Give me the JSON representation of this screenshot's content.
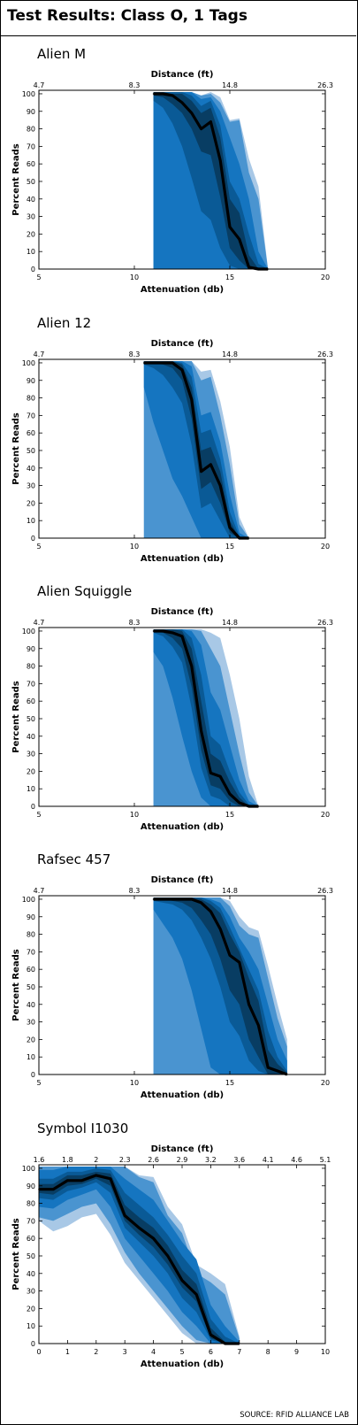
{
  "page": {
    "title": "Test Results: Class O, 1 Tags",
    "source": "SOURCE: RFID ALLIANCE LAB"
  },
  "colors": {
    "band_light": "#a8c8e6",
    "band_1": "#4a94d0",
    "band_2": "#1575c0",
    "band_3": "#0a5a96",
    "band_4": "#083d63",
    "median": "#000000",
    "frame": "#000000"
  },
  "chart_data": [
    {
      "type": "area",
      "title": "Alien M",
      "xlabel": "Attenuation (db)",
      "ylabel": "Percent Reads",
      "x2label": "Distance (ft)",
      "xlim": [
        5,
        20
      ],
      "ylim": [
        0,
        102
      ],
      "xticks": [
        5,
        10,
        15,
        20
      ],
      "yticks": [
        0,
        10,
        20,
        30,
        40,
        50,
        60,
        70,
        80,
        90,
        100
      ],
      "x2ticks": [
        "4.7",
        "8.3",
        "14.8",
        "26.3"
      ],
      "x": [
        11,
        11.5,
        12,
        12.5,
        13,
        13.5,
        14,
        14.5,
        15,
        15.5,
        16,
        16.5,
        17
      ],
      "series": [
        {
          "values": [
            100,
            100,
            99,
            95,
            89,
            80,
            84,
            62,
            24,
            17,
            1,
            0,
            0
          ]
        }
      ],
      "bands": [
        {
          "level": "min-max",
          "lower": [
            22,
            10,
            0,
            0,
            0,
            0,
            0,
            0,
            0,
            0,
            0,
            0,
            0
          ],
          "upper": [
            101,
            101,
            101,
            101,
            101,
            99,
            101,
            98,
            85,
            86,
            63,
            47,
            0
          ]
        },
        {
          "level": "outer",
          "lower": [
            0,
            0,
            0,
            0,
            0,
            0,
            0,
            0,
            0,
            0,
            0,
            0,
            0
          ],
          "upper": [
            101,
            101,
            101,
            101,
            101,
            99,
            100,
            95,
            84,
            85,
            55,
            40,
            0
          ]
        },
        {
          "level": "mid",
          "lower": [
            0,
            0,
            0,
            0,
            0,
            0,
            0,
            0,
            0,
            0,
            0,
            0,
            0
          ],
          "upper": [
            101,
            101,
            101,
            101,
            101,
            97,
            98,
            90,
            75,
            60,
            40,
            10,
            0
          ]
        },
        {
          "level": "inner",
          "lower": [
            96,
            92,
            83,
            70,
            52,
            33,
            28,
            12,
            2,
            0,
            0,
            0,
            0
          ],
          "upper": [
            101,
            101,
            101,
            101,
            99,
            93,
            96,
            82,
            50,
            40,
            20,
            3,
            0
          ]
        },
        {
          "level": "core",
          "lower": [
            99,
            98,
            94,
            89,
            80,
            67,
            65,
            41,
            12,
            5,
            0,
            0,
            0
          ],
          "upper": [
            101,
            101,
            100,
            100,
            96,
            89,
            92,
            75,
            40,
            32,
            8,
            0,
            0
          ]
        }
      ]
    },
    {
      "type": "area",
      "title": "Alien 12",
      "xlabel": "Attenuation (db)",
      "ylabel": "Percent Reads",
      "x2label": "Distance (ft)",
      "xlim": [
        5,
        20
      ],
      "ylim": [
        0,
        102
      ],
      "xticks": [
        5,
        10,
        15,
        20
      ],
      "yticks": [
        0,
        10,
        20,
        30,
        40,
        50,
        60,
        70,
        80,
        90,
        100
      ],
      "x2ticks": [
        "4.7",
        "8.3",
        "14.8",
        "26.3"
      ],
      "x": [
        10.5,
        11,
        11.5,
        12,
        12.5,
        13,
        13.5,
        14,
        14.5,
        15,
        15.5,
        16
      ],
      "series": [
        {
          "values": [
            100,
            100,
            100,
            100,
            96,
            79,
            38,
            42,
            30,
            6,
            0,
            0
          ]
        }
      ],
      "bands": [
        {
          "level": "min-max",
          "lower": [
            0,
            0,
            0,
            0,
            0,
            0,
            0,
            0,
            0,
            0,
            0,
            0
          ],
          "upper": [
            101,
            101,
            101,
            101,
            101,
            101,
            95,
            96,
            78,
            52,
            12,
            0
          ]
        },
        {
          "level": "outer",
          "lower": [
            0,
            0,
            0,
            0,
            0,
            0,
            0,
            0,
            0,
            0,
            0,
            0
          ],
          "upper": [
            101,
            101,
            101,
            101,
            101,
            101,
            90,
            92,
            70,
            42,
            8,
            0
          ]
        },
        {
          "level": "mid",
          "lower": [
            86,
            66,
            50,
            34,
            24,
            12,
            0,
            0,
            0,
            0,
            0,
            0
          ],
          "upper": [
            101,
            101,
            101,
            101,
            101,
            98,
            70,
            72,
            55,
            25,
            3,
            0
          ]
        },
        {
          "level": "inner",
          "lower": [
            99,
            97,
            93,
            86,
            77,
            53,
            17,
            20,
            10,
            0,
            0,
            0
          ],
          "upper": [
            101,
            101,
            101,
            101,
            100,
            92,
            60,
            62,
            45,
            15,
            1,
            0
          ]
        },
        {
          "level": "core",
          "lower": [
            100,
            100,
            99,
            97,
            90,
            68,
            28,
            32,
            20,
            3,
            0,
            0
          ],
          "upper": [
            101,
            101,
            101,
            101,
            99,
            86,
            50,
            52,
            38,
            10,
            0,
            0
          ]
        }
      ]
    },
    {
      "type": "area",
      "title": "Alien Squiggle",
      "xlabel": "Attenuation (db)",
      "ylabel": "Percent Reads",
      "x2label": "Distance (ft)",
      "xlim": [
        5,
        20
      ],
      "ylim": [
        0,
        102
      ],
      "xticks": [
        5,
        10,
        15,
        20
      ],
      "yticks": [
        0,
        10,
        20,
        30,
        40,
        50,
        60,
        70,
        80,
        90,
        100
      ],
      "x2ticks": [
        "4.7",
        "8.3",
        "14.8",
        "26.3"
      ],
      "x": [
        11,
        11.5,
        12,
        12.5,
        13,
        13.5,
        14,
        14.5,
        15,
        15.5,
        16,
        16.5
      ],
      "series": [
        {
          "values": [
            100,
            100,
            99,
            97,
            80,
            43,
            19,
            17,
            7,
            2,
            0,
            0
          ]
        }
      ],
      "bands": [
        {
          "level": "min-max",
          "lower": [
            0,
            0,
            0,
            0,
            0,
            0,
            0,
            0,
            0,
            0,
            0,
            0
          ],
          "upper": [
            101,
            101,
            101,
            101,
            101,
            101,
            99,
            96,
            75,
            50,
            17,
            0
          ]
        },
        {
          "level": "outer",
          "lower": [
            0,
            0,
            0,
            0,
            0,
            0,
            0,
            0,
            0,
            0,
            0,
            0
          ],
          "upper": [
            101,
            101,
            101,
            101,
            101,
            100,
            90,
            80,
            55,
            30,
            8,
            0
          ]
        },
        {
          "level": "mid",
          "lower": [
            88,
            80,
            62,
            40,
            20,
            5,
            0,
            0,
            0,
            0,
            0,
            0
          ],
          "upper": [
            101,
            101,
            101,
            101,
            100,
            92,
            65,
            55,
            35,
            15,
            3,
            0
          ]
        },
        {
          "level": "inner",
          "lower": [
            99,
            97,
            91,
            82,
            56,
            22,
            6,
            4,
            0,
            0,
            0,
            0
          ],
          "upper": [
            101,
            101,
            101,
            101,
            96,
            75,
            40,
            35,
            20,
            8,
            1,
            0
          ]
        },
        {
          "level": "core",
          "lower": [
            100,
            99,
            96,
            90,
            68,
            32,
            12,
            10,
            3,
            0,
            0,
            0
          ],
          "upper": [
            101,
            101,
            101,
            100,
            90,
            60,
            30,
            26,
            14,
            5,
            0,
            0
          ]
        }
      ]
    },
    {
      "type": "area",
      "title": "Rafsec 457",
      "xlabel": "Attenuation (db)",
      "ylabel": "Percent Reads",
      "x2label": "Distance (ft)",
      "xlim": [
        5,
        20
      ],
      "ylim": [
        0,
        102
      ],
      "xticks": [
        5,
        10,
        15,
        20
      ],
      "yticks": [
        0,
        10,
        20,
        30,
        40,
        50,
        60,
        70,
        80,
        90,
        100
      ],
      "x2ticks": [
        "4.7",
        "8.3",
        "14.8",
        "26.3"
      ],
      "x": [
        11,
        11.5,
        12,
        12.5,
        13,
        13.5,
        14,
        14.5,
        15,
        15.5,
        16,
        16.5,
        17,
        17.5,
        18
      ],
      "series": [
        {
          "values": [
            100,
            100,
            100,
            100,
            100,
            98,
            93,
            83,
            68,
            64,
            40,
            28,
            4,
            2,
            0
          ]
        }
      ],
      "bands": [
        {
          "level": "min-max",
          "lower": [
            0,
            0,
            0,
            0,
            0,
            0,
            0,
            0,
            0,
            0,
            0,
            0,
            0,
            0,
            0
          ],
          "upper": [
            101,
            101,
            101,
            101,
            101,
            101,
            101,
            101,
            99,
            90,
            84,
            82,
            62,
            40,
            20
          ]
        },
        {
          "level": "outer",
          "lower": [
            0,
            0,
            0,
            0,
            0,
            0,
            0,
            0,
            0,
            0,
            0,
            0,
            0,
            0,
            0
          ],
          "upper": [
            101,
            101,
            101,
            101,
            101,
            101,
            101,
            101,
            96,
            85,
            80,
            78,
            55,
            32,
            16
          ]
        },
        {
          "level": "mid",
          "lower": [
            94,
            86,
            78,
            66,
            48,
            26,
            4,
            0,
            0,
            0,
            0,
            0,
            0,
            0,
            0
          ],
          "upper": [
            101,
            101,
            101,
            101,
            101,
            101,
            100,
            98,
            90,
            78,
            70,
            60,
            40,
            20,
            8
          ]
        },
        {
          "level": "inner",
          "lower": [
            99,
            98,
            97,
            94,
            88,
            78,
            66,
            50,
            30,
            22,
            8,
            2,
            0,
            0,
            0
          ],
          "upper": [
            101,
            101,
            101,
            101,
            101,
            101,
            99,
            95,
            84,
            72,
            60,
            48,
            25,
            10,
            2
          ]
        },
        {
          "level": "core",
          "lower": [
            100,
            100,
            99,
            98,
            95,
            88,
            80,
            66,
            48,
            40,
            20,
            10,
            0,
            0,
            0
          ],
          "upper": [
            101,
            101,
            101,
            101,
            101,
            100,
            97,
            92,
            80,
            70,
            55,
            42,
            14,
            6,
            1
          ]
        }
      ]
    },
    {
      "type": "area",
      "title": "Symbol I1030",
      "xlabel": "Attenuation (db)",
      "ylabel": "Percent Reads",
      "x2label": "Distance (ft)",
      "xlim": [
        0,
        10
      ],
      "ylim": [
        0,
        102
      ],
      "xticks": [
        0,
        1,
        2,
        3,
        4,
        5,
        6,
        7,
        8,
        9,
        10
      ],
      "yticks": [
        0,
        10,
        20,
        30,
        40,
        50,
        60,
        70,
        80,
        90,
        100
      ],
      "x2ticks": [
        "1.6",
        "1.8",
        "2",
        "2.3",
        "2.6",
        "2.9",
        "3.2",
        "3.6",
        "4.1",
        "4.6",
        "5.1"
      ],
      "x": [
        0,
        0.5,
        1,
        1.5,
        2,
        2.5,
        3,
        3.5,
        4,
        4.5,
        5,
        5.5,
        6,
        6.5,
        7
      ],
      "series": [
        {
          "values": [
            88,
            88,
            93,
            93,
            96,
            94,
            73,
            66,
            60,
            50,
            36,
            28,
            5,
            0,
            0
          ]
        }
      ],
      "bands": [
        {
          "level": "min-max",
          "lower": [
            70,
            64,
            67,
            72,
            74,
            62,
            46,
            36,
            26,
            16,
            6,
            0,
            0,
            0,
            0
          ],
          "upper": [
            101,
            101,
            101,
            101,
            101,
            101,
            101,
            96,
            95,
            78,
            68,
            45,
            40,
            34,
            4
          ]
        },
        {
          "level": "outer",
          "lower": [
            72,
            70,
            74,
            78,
            80,
            68,
            52,
            40,
            30,
            20,
            10,
            2,
            0,
            0,
            0
          ],
          "upper": [
            101,
            101,
            101,
            101,
            101,
            101,
            101,
            95,
            92,
            73,
            63,
            40,
            35,
            28,
            3
          ]
        },
        {
          "level": "mid",
          "lower": [
            78,
            77,
            82,
            85,
            88,
            78,
            60,
            50,
            40,
            30,
            18,
            10,
            0,
            0,
            0
          ],
          "upper": [
            99,
            99,
            101,
            101,
            101,
            101,
            94,
            88,
            82,
            70,
            58,
            48,
            22,
            10,
            1
          ]
        },
        {
          "level": "inner",
          "lower": [
            83,
            82,
            87,
            89,
            92,
            86,
            66,
            58,
            50,
            40,
            26,
            18,
            2,
            0,
            0
          ],
          "upper": [
            94,
            94,
            98,
            98,
            100,
            99,
            86,
            79,
            72,
            62,
            50,
            40,
            14,
            4,
            0
          ]
        },
        {
          "level": "core",
          "lower": [
            86,
            85,
            90,
            91,
            94,
            90,
            70,
            62,
            55,
            45,
            32,
            24,
            3,
            0,
            0
          ],
          "upper": [
            91,
            91,
            96,
            96,
            98,
            97,
            79,
            72,
            66,
            56,
            42,
            34,
            9,
            1,
            0
          ]
        }
      ]
    }
  ]
}
